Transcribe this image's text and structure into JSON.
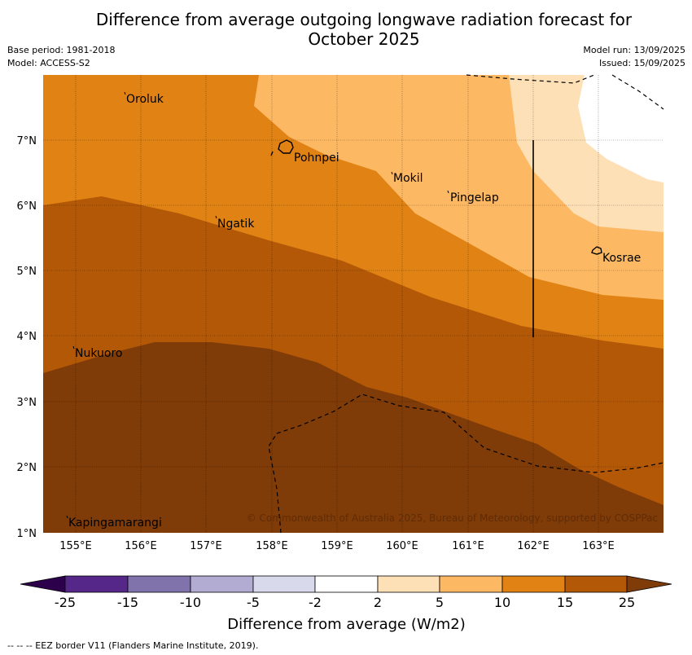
{
  "title_line1": "Difference from average outgoing longwave radiation forecast for",
  "title_line2": "October 2025",
  "meta_left": {
    "base_period": "Base period: 1981-2018",
    "model": "Model: ACCESS-S2"
  },
  "meta_right": {
    "model_run": "Model run: 13/09/2025",
    "issued": "Issued: 15/09/2025"
  },
  "map": {
    "lon_ticks": [
      "155°E",
      "156°E",
      "157°E",
      "158°E",
      "159°E",
      "160°E",
      "161°E",
      "162°E",
      "163°E"
    ],
    "lat_ticks": [
      "1°N",
      "2°N",
      "3°N",
      "4°N",
      "5°N",
      "6°N",
      "7°N"
    ],
    "places": [
      {
        "name": "Oroluk"
      },
      {
        "name": "Pohnpei"
      },
      {
        "name": "Mokil"
      },
      {
        "name": "Pingelap"
      },
      {
        "name": "Ngatik"
      },
      {
        "name": "Kosrae"
      },
      {
        "name": "Nukuoro"
      },
      {
        "name": "Kapingamarangi"
      }
    ],
    "copyright": "© Commonwealth of Australia 2025, Bureau of Meteorology, supported by COSPPac"
  },
  "colorbar": {
    "labels": [
      "-25",
      "-15",
      "-10",
      "-5",
      "-2",
      "2",
      "5",
      "10",
      "15",
      "25"
    ],
    "colors": [
      "#2d004b",
      "#542788",
      "#8073ac",
      "#b2abd2",
      "#d8daeb",
      "#ffffff",
      "#fee0b6",
      "#fdb863",
      "#e08214",
      "#b35806",
      "#7f3b08"
    ],
    "title": "Difference from average (W/m2)"
  },
  "footnote": "--  --  -- EEZ border V11 (Flanders Marine Institute, 2019)."
}
